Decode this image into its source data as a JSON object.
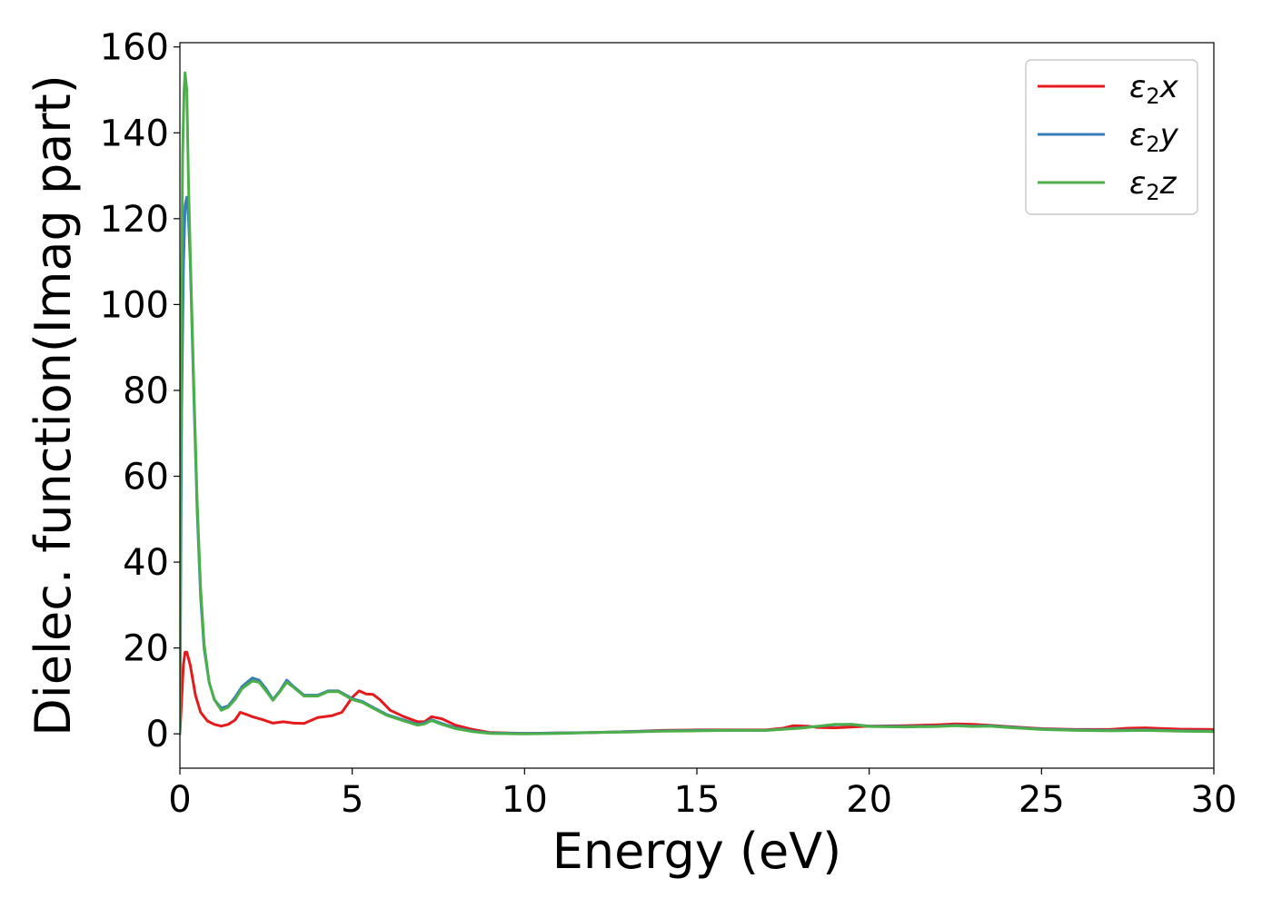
{
  "chart_data": {
    "type": "line",
    "title": "",
    "xlabel": "Energy (eV)",
    "ylabel": "Dielec. function(Imag part)",
    "xlim": [
      0,
      30
    ],
    "ylim": [
      -8,
      161
    ],
    "xticks": [
      0,
      5,
      10,
      15,
      20,
      25,
      30
    ],
    "yticks": [
      0,
      20,
      40,
      60,
      80,
      100,
      120,
      140,
      160
    ],
    "grid": false,
    "legend_position": "top-right",
    "series": [
      {
        "name": "ε₂x",
        "legend_base": "ε",
        "legend_sub": "2",
        "legend_tail": "x",
        "color": "#e41a1c",
        "points": [
          [
            0,
            0
          ],
          [
            0.05,
            8
          ],
          [
            0.1,
            16
          ],
          [
            0.15,
            19
          ],
          [
            0.2,
            19
          ],
          [
            0.3,
            16
          ],
          [
            0.45,
            9
          ],
          [
            0.6,
            5
          ],
          [
            0.8,
            3
          ],
          [
            1.0,
            2.2
          ],
          [
            1.2,
            1.8
          ],
          [
            1.4,
            2.2
          ],
          [
            1.6,
            3.2
          ],
          [
            1.75,
            5
          ],
          [
            1.9,
            4.6
          ],
          [
            2.1,
            4
          ],
          [
            2.4,
            3.3
          ],
          [
            2.7,
            2.5
          ],
          [
            3.0,
            2.8
          ],
          [
            3.3,
            2.5
          ],
          [
            3.6,
            2.4
          ],
          [
            4.0,
            3.8
          ],
          [
            4.4,
            4.2
          ],
          [
            4.7,
            5
          ],
          [
            5.0,
            8.5
          ],
          [
            5.2,
            10
          ],
          [
            5.4,
            9.3
          ],
          [
            5.6,
            9.2
          ],
          [
            5.8,
            8
          ],
          [
            6.1,
            5.5
          ],
          [
            6.5,
            4
          ],
          [
            6.9,
            2.8
          ],
          [
            7.1,
            2.8
          ],
          [
            7.3,
            4
          ],
          [
            7.6,
            3.5
          ],
          [
            8.0,
            2
          ],
          [
            8.5,
            1
          ],
          [
            9,
            0.3
          ],
          [
            10,
            0.1
          ],
          [
            11,
            0.2
          ],
          [
            12,
            0.3
          ],
          [
            13,
            0.5
          ],
          [
            14,
            0.8
          ],
          [
            15,
            0.9
          ],
          [
            16,
            0.9
          ],
          [
            17,
            0.9
          ],
          [
            17.5,
            1.3
          ],
          [
            17.8,
            1.9
          ],
          [
            18.2,
            1.8
          ],
          [
            18.5,
            1.5
          ],
          [
            19,
            1.4
          ],
          [
            19.5,
            1.6
          ],
          [
            20,
            1.8
          ],
          [
            21,
            1.9
          ],
          [
            22,
            2.1
          ],
          [
            22.5,
            2.3
          ],
          [
            23,
            2.2
          ],
          [
            23.5,
            2.0
          ],
          [
            24,
            1.7
          ],
          [
            25,
            1.2
          ],
          [
            26,
            1.0
          ],
          [
            27,
            1.0
          ],
          [
            27.5,
            1.3
          ],
          [
            28,
            1.4
          ],
          [
            29,
            1.1
          ],
          [
            30,
            1.0
          ]
        ]
      },
      {
        "name": "ε₂y",
        "legend_base": "ε",
        "legend_sub": "2",
        "legend_tail": "y",
        "color": "#377eb8",
        "points": [
          [
            0,
            0
          ],
          [
            0.05,
            75
          ],
          [
            0.1,
            108
          ],
          [
            0.15,
            123
          ],
          [
            0.2,
            125
          ],
          [
            0.25,
            120
          ],
          [
            0.3,
            110
          ],
          [
            0.4,
            80
          ],
          [
            0.5,
            52
          ],
          [
            0.6,
            32
          ],
          [
            0.7,
            20
          ],
          [
            0.85,
            12
          ],
          [
            1.0,
            8
          ],
          [
            1.2,
            6
          ],
          [
            1.4,
            6.5
          ],
          [
            1.6,
            8.5
          ],
          [
            1.8,
            11
          ],
          [
            2.1,
            13
          ],
          [
            2.3,
            12.5
          ],
          [
            2.5,
            10.5
          ],
          [
            2.7,
            8
          ],
          [
            2.9,
            10
          ],
          [
            3.1,
            12.5
          ],
          [
            3.3,
            11
          ],
          [
            3.6,
            9
          ],
          [
            4.0,
            9
          ],
          [
            4.3,
            10
          ],
          [
            4.6,
            10
          ],
          [
            5.0,
            8.2
          ],
          [
            5.3,
            7.5
          ],
          [
            5.6,
            6.2
          ],
          [
            6.0,
            4.5
          ],
          [
            6.5,
            3.2
          ],
          [
            6.9,
            2.2
          ],
          [
            7.1,
            2.5
          ],
          [
            7.3,
            3.3
          ],
          [
            7.6,
            2.4
          ],
          [
            8.0,
            1.4
          ],
          [
            8.5,
            0.6
          ],
          [
            9,
            0.2
          ],
          [
            10,
            0.1
          ],
          [
            11,
            0.2
          ],
          [
            12,
            0.3
          ],
          [
            13,
            0.5
          ],
          [
            14,
            0.7
          ],
          [
            15,
            0.8
          ],
          [
            16,
            0.8
          ],
          [
            17,
            0.8
          ],
          [
            18,
            1.4
          ],
          [
            19,
            2.1
          ],
          [
            19.5,
            2.2
          ],
          [
            20,
            1.8
          ],
          [
            21,
            1.7
          ],
          [
            22,
            1.8
          ],
          [
            22.5,
            2.0
          ],
          [
            23,
            1.8
          ],
          [
            23.5,
            1.9
          ],
          [
            24,
            1.6
          ],
          [
            25,
            1.1
          ],
          [
            26,
            0.9
          ],
          [
            27,
            0.8
          ],
          [
            28,
            0.9
          ],
          [
            29,
            0.7
          ],
          [
            30,
            0.6
          ]
        ]
      },
      {
        "name": "ε₂z",
        "legend_base": "ε",
        "legend_sub": "2",
        "legend_tail": "z",
        "color": "#4daf4a",
        "points": [
          [
            0,
            0
          ],
          [
            0.04,
            90
          ],
          [
            0.08,
            135
          ],
          [
            0.12,
            150
          ],
          [
            0.15,
            154
          ],
          [
            0.2,
            150
          ],
          [
            0.25,
            128
          ],
          [
            0.3,
            112
          ],
          [
            0.4,
            82
          ],
          [
            0.5,
            54
          ],
          [
            0.6,
            34
          ],
          [
            0.7,
            21
          ],
          [
            0.85,
            12
          ],
          [
            1.0,
            8
          ],
          [
            1.2,
            5.5
          ],
          [
            1.4,
            6.2
          ],
          [
            1.6,
            8
          ],
          [
            1.8,
            10.5
          ],
          [
            2.1,
            12.3
          ],
          [
            2.3,
            12
          ],
          [
            2.5,
            10
          ],
          [
            2.7,
            7.8
          ],
          [
            2.9,
            9.8
          ],
          [
            3.1,
            12
          ],
          [
            3.3,
            10.8
          ],
          [
            3.6,
            8.8
          ],
          [
            4.0,
            8.8
          ],
          [
            4.3,
            9.8
          ],
          [
            4.6,
            9.8
          ],
          [
            5.0,
            8
          ],
          [
            5.3,
            7.3
          ],
          [
            5.6,
            6
          ],
          [
            6.0,
            4.3
          ],
          [
            6.5,
            3
          ],
          [
            6.9,
            2
          ],
          [
            7.1,
            2.3
          ],
          [
            7.3,
            3.1
          ],
          [
            7.6,
            2.2
          ],
          [
            8.0,
            1.2
          ],
          [
            8.5,
            0.5
          ],
          [
            9,
            0.1
          ],
          [
            10,
            0.0
          ],
          [
            11,
            0.1
          ],
          [
            12,
            0.3
          ],
          [
            13,
            0.4
          ],
          [
            14,
            0.6
          ],
          [
            15,
            0.7
          ],
          [
            16,
            0.8
          ],
          [
            17,
            0.8
          ],
          [
            18,
            1.3
          ],
          [
            19,
            2.2
          ],
          [
            19.5,
            2.2
          ],
          [
            20,
            1.7
          ],
          [
            21,
            1.6
          ],
          [
            22,
            1.7
          ],
          [
            22.5,
            1.9
          ],
          [
            23,
            1.7
          ],
          [
            23.5,
            1.8
          ],
          [
            24,
            1.5
          ],
          [
            25,
            1.0
          ],
          [
            26,
            0.8
          ],
          [
            27,
            0.7
          ],
          [
            28,
            0.8
          ],
          [
            29,
            0.6
          ],
          [
            30,
            0.5
          ]
        ]
      }
    ]
  }
}
